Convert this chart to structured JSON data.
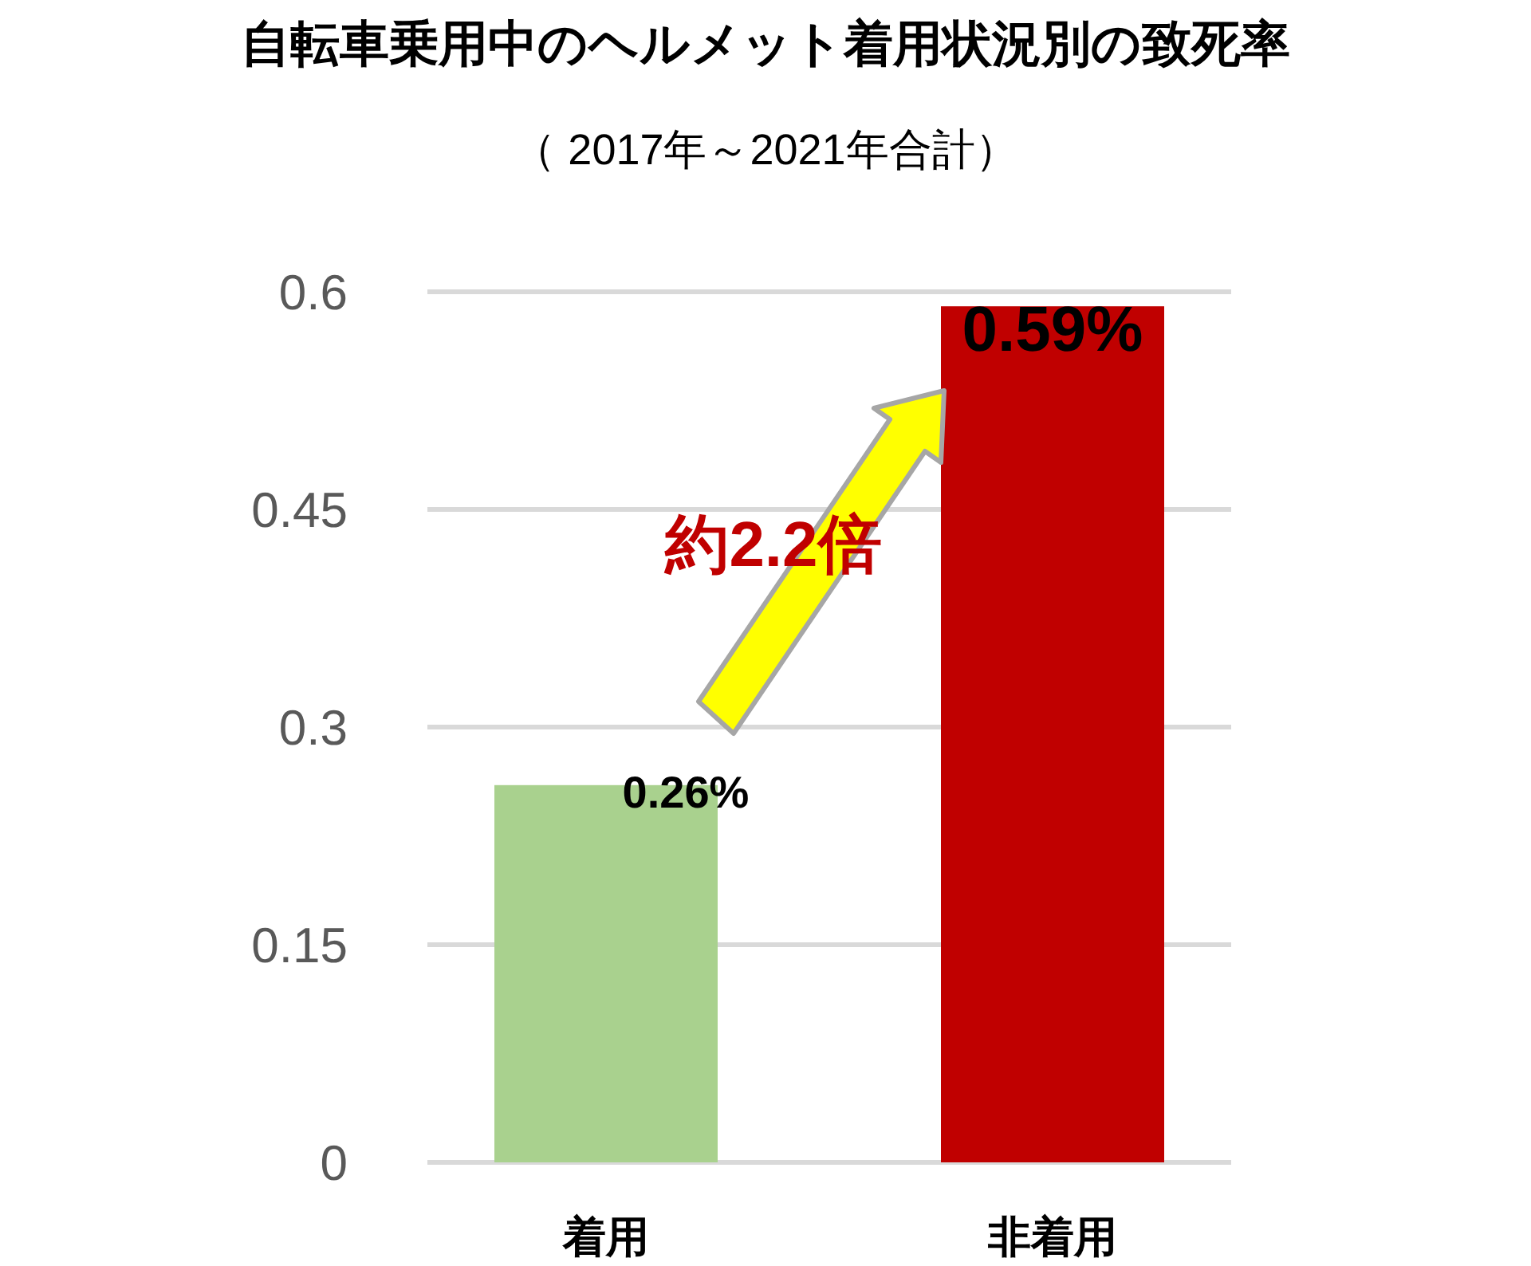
{
  "chart_data": {
    "type": "bar",
    "title": "自転車乗用中のヘルメット着用状況別の致死率",
    "subtitle": "（ 2017年～2021年合計）",
    "categories": [
      "着用",
      "非着用"
    ],
    "values": [
      0.26,
      0.59
    ],
    "colors": [
      "#a9d18e",
      "#c00000"
    ],
    "value_labels": [
      "0.26%",
      "0.59%"
    ],
    "ylim": [
      0,
      0.6
    ],
    "yticks": [
      0,
      0.15,
      0.3,
      0.45,
      0.6
    ],
    "grid": "y",
    "annotations": [
      "約2.2倍"
    ]
  }
}
